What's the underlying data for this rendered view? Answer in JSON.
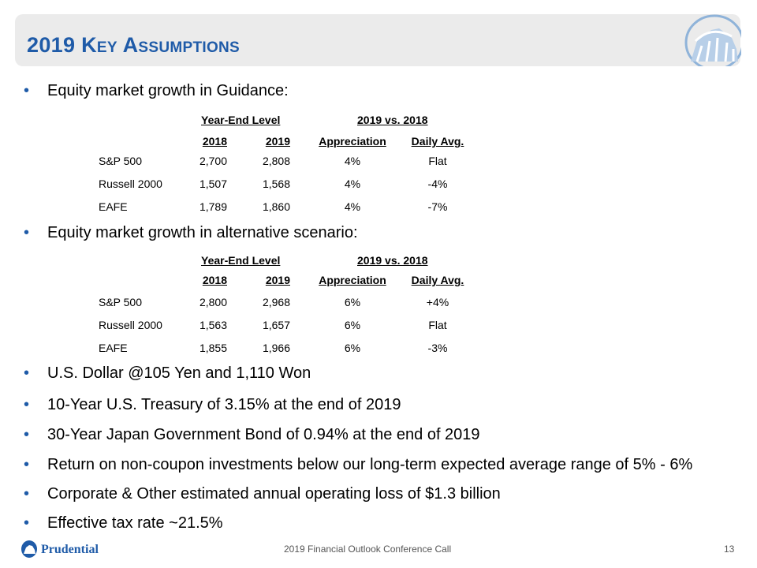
{
  "title": "2019 Key Assumptions",
  "colors": {
    "accent": "#1f5ba8",
    "title_bar": "#ebebeb"
  },
  "bullets_top": [
    {
      "text": "Equity market growth in Guidance:"
    },
    {
      "text": "Equity market growth in alternative scenario:"
    }
  ],
  "tables": [
    {
      "group_headers": [
        "Year-End Level",
        "2019 vs. 2018"
      ],
      "columns": [
        "2018",
        "2019",
        "Appreciation",
        "Daily Avg."
      ],
      "rows": [
        [
          "S&P 500",
          "2,700",
          "2,808",
          "4%",
          "Flat"
        ],
        [
          "Russell 2000",
          "1,507",
          "1,568",
          "4%",
          "-4%"
        ],
        [
          "EAFE",
          "1,789",
          "1,860",
          "4%",
          "-7%"
        ]
      ]
    },
    {
      "group_headers": [
        "Year-End Level",
        "2019 vs. 2018"
      ],
      "columns": [
        "2018",
        "2019",
        "Appreciation",
        "Daily Avg."
      ],
      "rows": [
        [
          "S&P 500",
          "2,800",
          "2,968",
          "6%",
          "+4%"
        ],
        [
          "Russell 2000",
          "1,563",
          "1,657",
          "6%",
          "Flat"
        ],
        [
          "EAFE",
          "1,855",
          "1,966",
          "6%",
          "-3%"
        ]
      ]
    }
  ],
  "bullets_bottom": [
    "U.S. Dollar @105 Yen and 1,110 Won",
    "10-Year U.S. Treasury of 3.15% at the end of 2019",
    "30-Year Japan Government Bond of 0.94% at the end of 2019",
    "Return on non-coupon investments below our long-term expected average range of 5% - 6%",
    "Corporate & Other estimated annual operating loss of $1.3 billion",
    "Effective tax rate ~21.5%"
  ],
  "bullet_glyph": "•",
  "footer": {
    "logo_text": "Prudential",
    "center_text": "2019 Financial Outlook Conference Call",
    "page_number": "13"
  }
}
